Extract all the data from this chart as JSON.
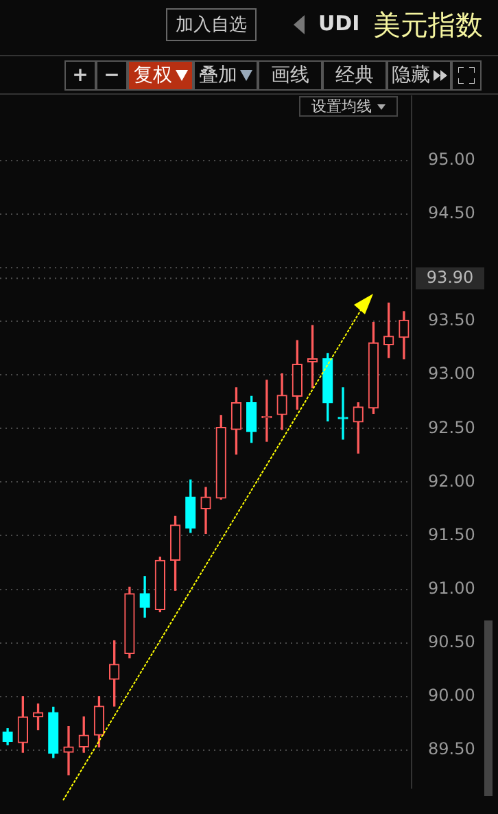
{
  "chart_data": {
    "type": "candlestick",
    "title": "美元指数",
    "subtitle": "UDI",
    "categories": [
      null,
      null,
      null,
      null,
      null,
      null,
      null,
      null,
      null,
      null,
      null,
      null,
      null,
      null,
      null,
      null,
      null,
      null,
      null,
      null,
      null,
      null,
      null,
      null,
      null,
      null,
      null
    ],
    "ohlc": [
      [
        89.67,
        89.7,
        89.55,
        89.58
      ],
      [
        89.57,
        90.0,
        89.48,
        89.81
      ],
      [
        89.81,
        89.93,
        89.69,
        89.85
      ],
      [
        89.85,
        89.9,
        89.43,
        89.47
      ],
      [
        89.48,
        89.72,
        89.27,
        89.53
      ],
      [
        89.53,
        89.81,
        89.48,
        89.64
      ],
      [
        89.64,
        90.0,
        89.53,
        89.91
      ],
      [
        90.16,
        90.52,
        89.91,
        90.3
      ],
      [
        90.4,
        91.02,
        90.36,
        90.96
      ],
      [
        90.96,
        91.12,
        90.74,
        90.83
      ],
      [
        90.81,
        91.3,
        90.79,
        91.27
      ],
      [
        91.27,
        91.68,
        90.99,
        91.6
      ],
      [
        91.86,
        92.02,
        91.53,
        91.57
      ],
      [
        91.75,
        91.95,
        91.52,
        91.86
      ],
      [
        91.85,
        92.62,
        91.84,
        92.51
      ],
      [
        92.49,
        92.88,
        92.26,
        92.74
      ],
      [
        92.74,
        92.8,
        92.37,
        92.47
      ],
      [
        92.6,
        92.95,
        92.38,
        92.6
      ],
      [
        92.63,
        93.01,
        92.49,
        92.81
      ],
      [
        92.8,
        93.32,
        92.68,
        93.1
      ],
      [
        93.12,
        93.46,
        92.88,
        93.15
      ],
      [
        93.15,
        93.2,
        92.57,
        92.74
      ],
      [
        92.59,
        92.88,
        92.4,
        92.59
      ],
      [
        92.56,
        92.74,
        92.27,
        92.7
      ],
      [
        92.69,
        93.49,
        92.64,
        93.3
      ],
      [
        93.28,
        93.67,
        93.16,
        93.36
      ],
      [
        93.35,
        93.59,
        93.15,
        93.51
      ]
    ],
    "colors": [
      "#00ffff",
      "#ff5b5b",
      "#ff5b5b",
      "#00ffff",
      "#ff5b5b",
      "#ff5b5b",
      "#ff5b5b",
      "#ff5b5b",
      "#ff5b5b",
      "#00ffff",
      "#ff5b5b",
      "#ff5b5b",
      "#00ffff",
      "#ff5b5b",
      "#ff5b5b",
      "#ff5b5b",
      "#00ffff",
      "#ff5b5b",
      "#ff5b5b",
      "#ff5b5b",
      "#ff5b5b",
      "#00ffff",
      "#00ffff",
      "#ff5b5b",
      "#ff5b5b",
      "#ff5b5b",
      "#ff5b5b"
    ],
    "ylim": [
      89.15,
      95.6
    ],
    "yticks": [
      {
        "value": 89.5,
        "label": "89.50"
      },
      {
        "value": 90,
        "label": "90.00"
      },
      {
        "value": 90.5,
        "label": "90.50"
      },
      {
        "value": 91,
        "label": "91.00"
      },
      {
        "value": 91.5,
        "label": "91.50"
      },
      {
        "value": 92,
        "label": "92.00"
      },
      {
        "value": 92.5,
        "label": "92.50"
      },
      {
        "value": 93,
        "label": "93.00"
      },
      {
        "value": 93.5,
        "label": "93.50"
      },
      {
        "value": 94,
        "label": null
      },
      {
        "value": 94.5,
        "label": "94.50"
      },
      {
        "value": 95,
        "label": "95.00"
      }
    ],
    "grid": "y",
    "ref_lines": [
      {
        "axis": "y",
        "value": 93.9,
        "label": "93.90"
      }
    ],
    "annotations": [
      "加入自选",
      "+",
      "−",
      "复权",
      "叠加",
      "画线",
      "经典",
      "隐藏",
      "设置均线"
    ]
  }
}
